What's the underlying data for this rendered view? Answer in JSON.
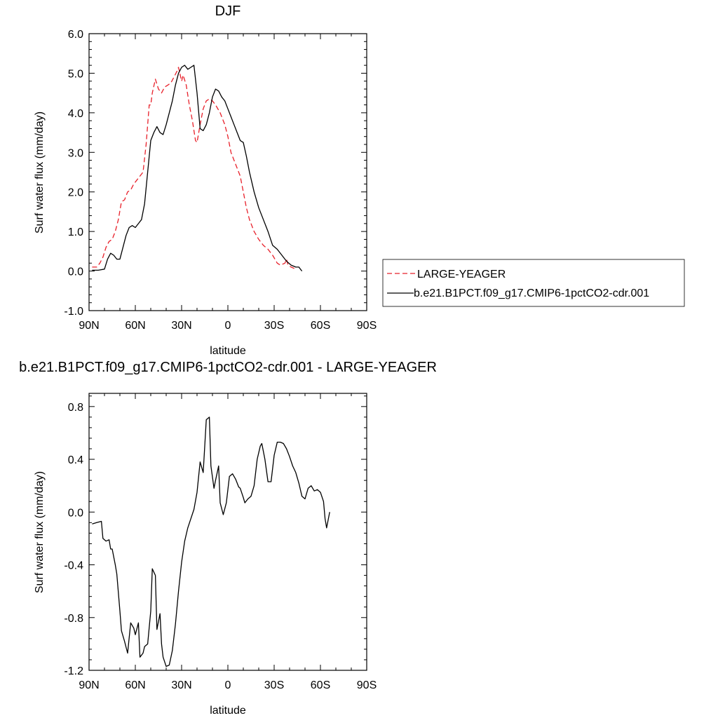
{
  "chart_data": [
    {
      "type": "line",
      "title": "DJF",
      "xlabel": "latitude",
      "ylabel": "Surf water flux (mm/day)",
      "xlim": [
        90,
        -90
      ],
      "ylim": [
        -1.0,
        6.0
      ],
      "xticks": [
        {
          "value": 90,
          "label": "90N"
        },
        {
          "value": 60,
          "label": "60N"
        },
        {
          "value": 30,
          "label": "30N"
        },
        {
          "value": 0,
          "label": "0"
        },
        {
          "value": -30,
          "label": "30S"
        },
        {
          "value": -60,
          "label": "60S"
        },
        {
          "value": -90,
          "label": "90S"
        }
      ],
      "yticks": [
        {
          "value": -1.0,
          "label": "-1.0"
        },
        {
          "value": 0.0,
          "label": "0.0"
        },
        {
          "value": 1.0,
          "label": "1.0"
        },
        {
          "value": 2.0,
          "label": "2.0"
        },
        {
          "value": 3.0,
          "label": "3.0"
        },
        {
          "value": 4.0,
          "label": "4.0"
        },
        {
          "value": 5.0,
          "label": "5.0"
        },
        {
          "value": 6.0,
          "label": "6.0"
        }
      ],
      "legend_position": "right",
      "series": [
        {
          "name": "LARGE-YEAGER",
          "color": "#e8202a",
          "dash": true,
          "points": [
            [
              88,
              0.1
            ],
            [
              85,
              0.1
            ],
            [
              83,
              0.2
            ],
            [
              81,
              0.35
            ],
            [
              79,
              0.6
            ],
            [
              77,
              0.75
            ],
            [
              75,
              0.8
            ],
            [
              73,
              1.0
            ],
            [
              71,
              1.3
            ],
            [
              69,
              1.75
            ],
            [
              67,
              1.8
            ],
            [
              65,
              2.0
            ],
            [
              63,
              2.05
            ],
            [
              61,
              2.2
            ],
            [
              59,
              2.3
            ],
            [
              57,
              2.4
            ],
            [
              55,
              2.5
            ],
            [
              53,
              3.2
            ],
            [
              51,
              4.2
            ],
            [
              50,
              4.2
            ],
            [
              49,
              4.5
            ],
            [
              47,
              4.85
            ],
            [
              45,
              4.6
            ],
            [
              43,
              4.5
            ],
            [
              41,
              4.65
            ],
            [
              39,
              4.7
            ],
            [
              37,
              4.75
            ],
            [
              35,
              4.9
            ],
            [
              33,
              5.05
            ],
            [
              32,
              5.15
            ],
            [
              30,
              4.8
            ],
            [
              29,
              4.95
            ],
            [
              27,
              4.7
            ],
            [
              25,
              4.2
            ],
            [
              23,
              3.8
            ],
            [
              21,
              3.3
            ],
            [
              20,
              3.25
            ],
            [
              18,
              3.7
            ],
            [
              16,
              4.1
            ],
            [
              14,
              4.3
            ],
            [
              12,
              4.35
            ],
            [
              10,
              4.3
            ],
            [
              8,
              4.2
            ],
            [
              5,
              4.0
            ],
            [
              2,
              3.7
            ],
            [
              0,
              3.4
            ],
            [
              -2,
              3.0
            ],
            [
              -4,
              2.8
            ],
            [
              -6,
              2.6
            ],
            [
              -8,
              2.4
            ],
            [
              -10,
              2.0
            ],
            [
              -12,
              1.6
            ],
            [
              -14,
              1.3
            ],
            [
              -17,
              1.0
            ],
            [
              -20,
              0.8
            ],
            [
              -23,
              0.65
            ],
            [
              -26,
              0.55
            ],
            [
              -29,
              0.4
            ],
            [
              -32,
              0.2
            ],
            [
              -34,
              0.15
            ],
            [
              -37,
              0.2
            ],
            [
              -38,
              0.3
            ],
            [
              -39,
              0.15
            ],
            [
              -41,
              0.1
            ],
            [
              -44,
              0.05
            ]
          ]
        },
        {
          "name": "b.e21.B1PCT.f09_g17.CMIP6-1pctCO2-cdr.001",
          "color": "#000000",
          "dash": false,
          "points": [
            [
              88,
              0.02
            ],
            [
              84,
              0.02
            ],
            [
              80,
              0.05
            ],
            [
              78,
              0.3
            ],
            [
              76,
              0.45
            ],
            [
              74,
              0.4
            ],
            [
              72,
              0.3
            ],
            [
              70,
              0.3
            ],
            [
              68,
              0.6
            ],
            [
              66,
              0.9
            ],
            [
              64,
              1.1
            ],
            [
              62,
              1.15
            ],
            [
              60,
              1.1
            ],
            [
              58,
              1.2
            ],
            [
              56,
              1.3
            ],
            [
              54,
              1.7
            ],
            [
              52,
              2.5
            ],
            [
              50,
              3.3
            ],
            [
              48,
              3.5
            ],
            [
              46,
              3.65
            ],
            [
              44,
              3.5
            ],
            [
              42,
              3.45
            ],
            [
              40,
              3.7
            ],
            [
              38,
              4.0
            ],
            [
              36,
              4.3
            ],
            [
              34,
              4.7
            ],
            [
              32,
              5.0
            ],
            [
              30,
              5.15
            ],
            [
              28,
              5.2
            ],
            [
              26,
              5.1
            ],
            [
              24,
              5.15
            ],
            [
              22,
              5.2
            ],
            [
              20,
              4.5
            ],
            [
              18,
              3.6
            ],
            [
              16,
              3.55
            ],
            [
              14,
              3.7
            ],
            [
              12,
              4.0
            ],
            [
              10,
              4.4
            ],
            [
              8,
              4.6
            ],
            [
              6,
              4.55
            ],
            [
              4,
              4.4
            ],
            [
              2,
              4.3
            ],
            [
              0,
              4.1
            ],
            [
              -2,
              3.9
            ],
            [
              -4,
              3.7
            ],
            [
              -6,
              3.5
            ],
            [
              -8,
              3.3
            ],
            [
              -10,
              3.25
            ],
            [
              -12,
              2.9
            ],
            [
              -14,
              2.5
            ],
            [
              -17,
              2.0
            ],
            [
              -20,
              1.6
            ],
            [
              -23,
              1.3
            ],
            [
              -26,
              1.0
            ],
            [
              -29,
              0.65
            ],
            [
              -32,
              0.55
            ],
            [
              -35,
              0.4
            ],
            [
              -38,
              0.25
            ],
            [
              -41,
              0.15
            ],
            [
              -44,
              0.1
            ],
            [
              -46,
              0.1
            ],
            [
              -48,
              0.0
            ]
          ]
        }
      ]
    },
    {
      "type": "line",
      "title": "b.e21.B1PCT.f09_g17.CMIP6-1pctCO2-cdr.001 - LARGE-YEAGER",
      "xlabel": "latitude",
      "ylabel": "Surf water flux (mm/day)",
      "xlim": [
        90,
        -90
      ],
      "ylim": [
        -1.2,
        0.9
      ],
      "xticks": [
        {
          "value": 90,
          "label": "90N"
        },
        {
          "value": 60,
          "label": "60N"
        },
        {
          "value": 30,
          "label": "30N"
        },
        {
          "value": 0,
          "label": "0"
        },
        {
          "value": -30,
          "label": "30S"
        },
        {
          "value": -60,
          "label": "60S"
        },
        {
          "value": -90,
          "label": "90S"
        }
      ],
      "yticks": [
        {
          "value": -1.2,
          "label": "-1.2"
        },
        {
          "value": -0.8,
          "label": "-0.8"
        },
        {
          "value": -0.4,
          "label": "-0.4"
        },
        {
          "value": 0.0,
          "label": "0.0"
        },
        {
          "value": 0.4,
          "label": "0.4"
        },
        {
          "value": 0.8,
          "label": "0.8"
        }
      ],
      "series": [
        {
          "color": "#000000",
          "dash": false,
          "points": [
            [
              88,
              -0.09
            ],
            [
              85,
              -0.08
            ],
            [
              82,
              -0.07
            ],
            [
              81,
              -0.2
            ],
            [
              79,
              -0.22
            ],
            [
              77,
              -0.21
            ],
            [
              76,
              -0.28
            ],
            [
              75,
              -0.28
            ],
            [
              73,
              -0.4
            ],
            [
              72,
              -0.47
            ],
            [
              70,
              -0.75
            ],
            [
              69,
              -0.9
            ],
            [
              67,
              -0.98
            ],
            [
              65,
              -1.07
            ],
            [
              63,
              -0.84
            ],
            [
              61,
              -0.88
            ],
            [
              60,
              -0.93
            ],
            [
              58,
              -0.84
            ],
            [
              57,
              -1.1
            ],
            [
              55,
              -1.07
            ],
            [
              54,
              -1.02
            ],
            [
              52,
              -1.0
            ],
            [
              50,
              -0.75
            ],
            [
              49,
              -0.43
            ],
            [
              47,
              -0.48
            ],
            [
              46,
              -0.89
            ],
            [
              44,
              -0.77
            ],
            [
              43,
              -1.0
            ],
            [
              42,
              -1.1
            ],
            [
              40,
              -1.17
            ],
            [
              38,
              -1.16
            ],
            [
              36,
              -1.05
            ],
            [
              34,
              -0.85
            ],
            [
              32,
              -0.6
            ],
            [
              30,
              -0.38
            ],
            [
              28,
              -0.22
            ],
            [
              26,
              -0.12
            ],
            [
              24,
              -0.05
            ],
            [
              22,
              0.02
            ],
            [
              20,
              0.15
            ],
            [
              18,
              0.38
            ],
            [
              16,
              0.3
            ],
            [
              14,
              0.7
            ],
            [
              12,
              0.72
            ],
            [
              11,
              0.35
            ],
            [
              9,
              0.18
            ],
            [
              8,
              0.24
            ],
            [
              6,
              0.35
            ],
            [
              5,
              0.07
            ],
            [
              3,
              -0.02
            ],
            [
              1,
              0.07
            ],
            [
              -1,
              0.27
            ],
            [
              -3,
              0.29
            ],
            [
              -5,
              0.25
            ],
            [
              -7,
              0.19
            ],
            [
              -8,
              0.18
            ],
            [
              -10,
              0.11
            ],
            [
              -11,
              0.07
            ],
            [
              -13,
              0.1
            ],
            [
              -15,
              0.12
            ],
            [
              -17,
              0.2
            ],
            [
              -19,
              0.4
            ],
            [
              -21,
              0.5
            ],
            [
              -22,
              0.52
            ],
            [
              -24,
              0.4
            ],
            [
              -26,
              0.23
            ],
            [
              -28,
              0.23
            ],
            [
              -30,
              0.43
            ],
            [
              -32,
              0.53
            ],
            [
              -34,
              0.53
            ],
            [
              -36,
              0.52
            ],
            [
              -38,
              0.48
            ],
            [
              -40,
              0.42
            ],
            [
              -42,
              0.35
            ],
            [
              -44,
              0.3
            ],
            [
              -46,
              0.22
            ],
            [
              -48,
              0.12
            ],
            [
              -50,
              0.1
            ],
            [
              -52,
              0.18
            ],
            [
              -54,
              0.2
            ],
            [
              -56,
              0.16
            ],
            [
              -58,
              0.17
            ],
            [
              -60,
              0.15
            ],
            [
              -62,
              0.08
            ],
            [
              -63,
              -0.05
            ],
            [
              -64,
              -0.12
            ],
            [
              -66,
              0.0
            ]
          ]
        }
      ]
    }
  ]
}
